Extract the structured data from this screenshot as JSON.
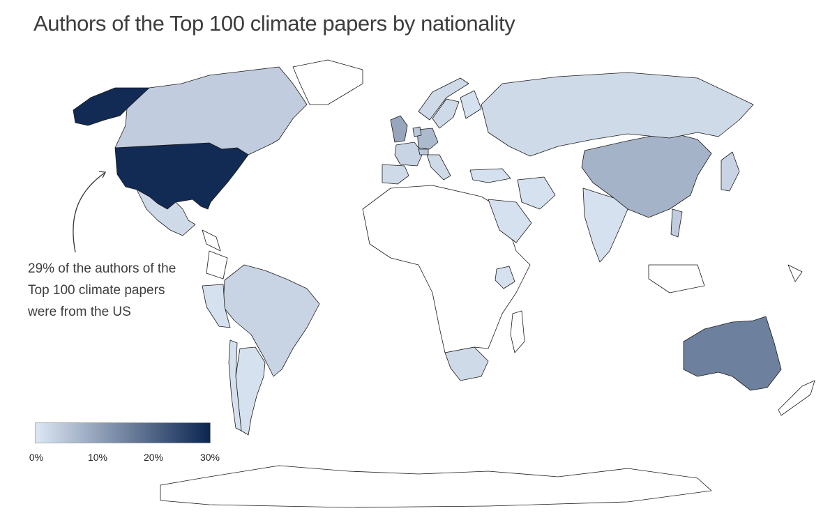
{
  "title": "Authors of the Top 100 climate papers by nationality",
  "annotation": {
    "lines": [
      "29% of the authors of the",
      "Top 100 climate papers",
      "were from the US"
    ]
  },
  "legend": {
    "min_color": "#dde7f4",
    "max_color": "#0b2550",
    "ticks": [
      "0%",
      "10%",
      "20%",
      "30%"
    ],
    "range": [
      0,
      30
    ]
  },
  "colors": {
    "none": "#ffffff",
    "stroke": "#1a1a1a"
  },
  "countries": [
    {
      "name": "United States",
      "share": 29
    },
    {
      "name": "Alaska (US)",
      "share": 29
    },
    {
      "name": "Australia",
      "share": 16
    },
    {
      "name": "China",
      "share": 8
    },
    {
      "name": "United Kingdom",
      "share": 10
    },
    {
      "name": "Germany",
      "share": 7
    },
    {
      "name": "France",
      "share": 3
    },
    {
      "name": "Netherlands",
      "share": 5
    },
    {
      "name": "Switzerland",
      "share": 5
    },
    {
      "name": "Canada",
      "share": 4
    },
    {
      "name": "Brazil",
      "share": 3
    },
    {
      "name": "Russia",
      "share": 2
    },
    {
      "name": "Spain",
      "share": 2
    },
    {
      "name": "Italy",
      "share": 2
    },
    {
      "name": "Norway",
      "share": 2
    },
    {
      "name": "Sweden",
      "share": 2
    },
    {
      "name": "Finland",
      "share": 1
    },
    {
      "name": "Japan",
      "share": 3
    },
    {
      "name": "South Africa",
      "share": 2
    },
    {
      "name": "Mexico",
      "share": 2
    },
    {
      "name": "India",
      "share": 1
    },
    {
      "name": "Argentina",
      "share": 1
    },
    {
      "name": "Chile",
      "share": 1
    },
    {
      "name": "Peru",
      "share": 1
    },
    {
      "name": "Saudi Arabia",
      "share": 1
    },
    {
      "name": "Turkey",
      "share": 1
    },
    {
      "name": "Kenya",
      "share": 1
    },
    {
      "name": "Iran",
      "share": 1
    },
    {
      "name": "Vietnam",
      "share": 4
    },
    {
      "name": "New Zealand",
      "share": 0
    }
  ]
}
